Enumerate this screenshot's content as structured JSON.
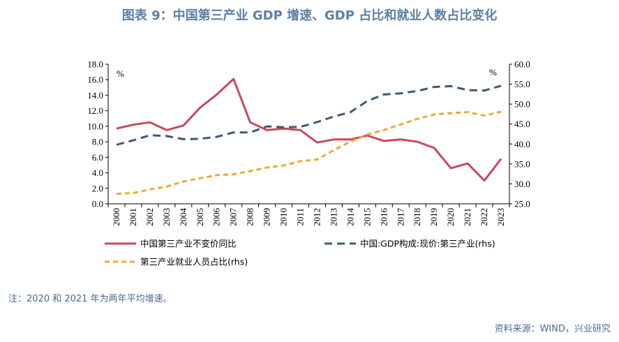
{
  "header": {
    "title": "图表 9：中国第三产业 GDP 增速、GDP 占比和就业人数占比变化"
  },
  "footer": {
    "note": "注：2020 和 2021 年为两年平均增速。",
    "source": "资料来源：WIND，兴业研究"
  },
  "chart_data": {
    "type": "line",
    "x": [
      "2000",
      "2001",
      "2002",
      "2003",
      "2004",
      "2005",
      "2006",
      "2007",
      "2008",
      "2009",
      "2010",
      "2011",
      "2012",
      "2013",
      "2014",
      "2015",
      "2016",
      "2017",
      "2018",
      "2019",
      "2020",
      "2021",
      "2022",
      "2023"
    ],
    "left_axis": {
      "unit_label": "%",
      "ylim": [
        0,
        18
      ],
      "ticks": [
        "0.0",
        "2.0",
        "4.0",
        "6.0",
        "8.0",
        "10.0",
        "12.0",
        "14.0",
        "16.0",
        "18.0"
      ]
    },
    "right_axis": {
      "unit_label": "%",
      "ylim": [
        25,
        60
      ],
      "ticks": [
        "25.0",
        "30.0",
        "35.0",
        "40.0",
        "45.0",
        "50.0",
        "55.0",
        "60.0"
      ]
    },
    "series": [
      {
        "name": "中国第三产业不变价同比",
        "axis": "left",
        "color": "#c8485c",
        "style": "solid",
        "values": [
          9.7,
          10.2,
          10.5,
          9.5,
          10.1,
          12.4,
          14.1,
          16.1,
          10.5,
          9.5,
          9.7,
          9.5,
          7.9,
          8.3,
          8.3,
          8.8,
          8.1,
          8.3,
          8.0,
          7.2,
          4.6,
          5.2,
          3.0,
          5.8
        ]
      },
      {
        "name": "中国:GDP构成:现价:第三产业(rhs)",
        "axis": "right",
        "color": "#3e5875",
        "style": "dashed",
        "values": [
          39.8,
          40.9,
          42.2,
          42.0,
          41.2,
          41.3,
          41.8,
          42.9,
          42.9,
          44.4,
          44.2,
          44.3,
          45.5,
          46.9,
          48.0,
          50.8,
          52.4,
          52.7,
          53.3,
          54.3,
          54.5,
          53.5,
          53.4,
          54.6
        ]
      },
      {
        "name": "第三产业就业人员占比(rhs)",
        "axis": "right",
        "color": "#f0a830",
        "style": "dashed",
        "values": [
          27.5,
          27.7,
          28.6,
          29.3,
          30.6,
          31.4,
          32.2,
          32.4,
          33.2,
          34.1,
          34.6,
          35.7,
          36.1,
          38.5,
          40.6,
          42.4,
          43.5,
          44.9,
          46.3,
          47.4,
          47.7,
          48.0,
          47.1,
          48.1
        ]
      }
    ],
    "legend": "bottom"
  }
}
